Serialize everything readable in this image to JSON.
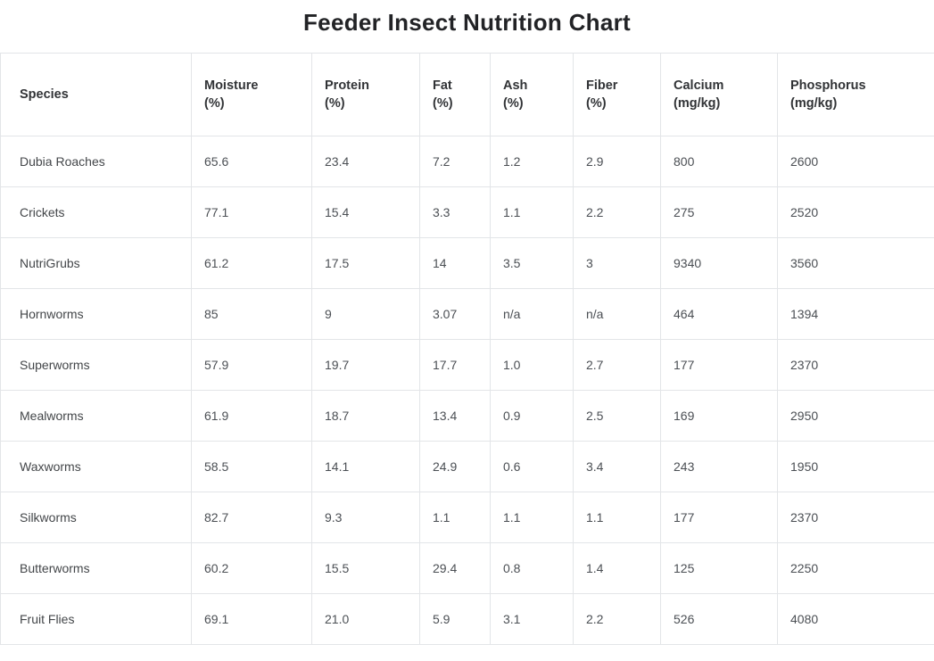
{
  "page_title": "Feeder Insect Nutrition Chart",
  "colors": {
    "background": "#ffffff",
    "border": "#e3e5e8",
    "title_text": "#222326",
    "header_text": "#313336",
    "body_text": "#4b4f54"
  },
  "chart_data": {
    "type": "table",
    "title": "Feeder Insect Nutrition Chart",
    "columns": [
      {
        "label": "Species",
        "unit": ""
      },
      {
        "label": "Moisture",
        "unit": "(%)"
      },
      {
        "label": "Protein",
        "unit": "(%)"
      },
      {
        "label": "Fat",
        "unit": "(%)"
      },
      {
        "label": "Ash",
        "unit": "(%)"
      },
      {
        "label": "Fiber",
        "unit": "(%)"
      },
      {
        "label": "Calcium",
        "unit": "(mg/kg)"
      },
      {
        "label": "Phosphorus",
        "unit": "(mg/kg)"
      }
    ],
    "rows": [
      [
        "Dubia Roaches",
        "65.6",
        "23.4",
        "7.2",
        "1.2",
        "2.9",
        "800",
        "2600"
      ],
      [
        "Crickets",
        "77.1",
        "15.4",
        "3.3",
        "1.1",
        "2.2",
        "275",
        "2520"
      ],
      [
        "NutriGrubs",
        "61.2",
        "17.5",
        "14",
        "3.5",
        "3",
        "9340",
        "3560"
      ],
      [
        "Hornworms",
        "85",
        "9",
        "3.07",
        "n/a",
        "n/a",
        "464",
        "1394"
      ],
      [
        "Superworms",
        "57.9",
        "19.7",
        "17.7",
        "1.0",
        "2.7",
        "177",
        "2370"
      ],
      [
        "Mealworms",
        "61.9",
        "18.7",
        "13.4",
        "0.9",
        "2.5",
        "169",
        "2950"
      ],
      [
        "Waxworms",
        "58.5",
        "14.1",
        "24.9",
        "0.6",
        "3.4",
        "243",
        "1950"
      ],
      [
        "Silkworms",
        "82.7",
        "9.3",
        "1.1",
        "1.1",
        "1.1",
        "177",
        "2370"
      ],
      [
        "Butterworms",
        "60.2",
        "15.5",
        "29.4",
        "0.8",
        "1.4",
        "125",
        "2250"
      ],
      [
        "Fruit Flies",
        "69.1",
        "21.0",
        "5.9",
        "3.1",
        "2.2",
        "526",
        "4080"
      ]
    ]
  }
}
